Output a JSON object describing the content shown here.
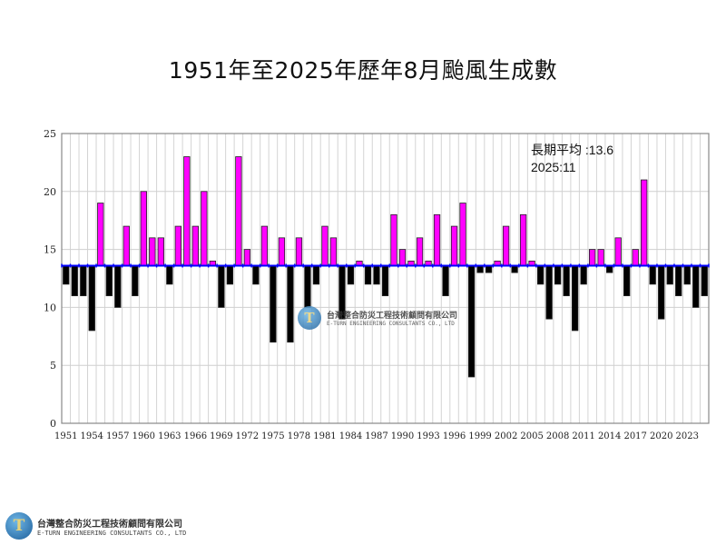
{
  "chart_data": {
    "type": "bar",
    "title": "1951年至2025年歷年8月颱風生成數",
    "xlabel": "",
    "ylabel": "",
    "ylim": [
      0,
      25
    ],
    "yticks": [
      0,
      5,
      10,
      15,
      20,
      25
    ],
    "baseline": 13.6,
    "x_start": 1951,
    "xtick_labels": [
      "1951",
      "1954",
      "1957",
      "1960",
      "1963",
      "1966",
      "1969",
      "1972",
      "1975",
      "1978",
      "1981",
      "1984",
      "1987",
      "1990",
      "1993",
      "1996",
      "1999",
      "2002",
      "2005",
      "2008",
      "2011",
      "2014",
      "2017",
      "2020",
      "2023"
    ],
    "values": [
      12,
      11,
      11,
      8,
      19,
      11,
      10,
      17,
      11,
      20,
      16,
      16,
      12,
      17,
      23,
      17,
      20,
      14,
      10,
      12,
      23,
      15,
      12,
      17,
      7,
      16,
      7,
      16,
      10,
      12,
      17,
      16,
      9,
      12,
      14,
      12,
      12,
      11,
      18,
      15,
      14,
      16,
      14,
      18,
      11,
      17,
      19,
      4,
      13,
      13,
      14,
      17,
      13,
      18,
      14,
      12,
      9,
      12,
      11,
      8,
      12,
      15,
      15,
      13,
      16,
      11,
      15,
      21,
      12,
      9,
      12,
      11,
      12,
      10,
      11
    ],
    "colors": {
      "above": "#ff00ff",
      "below": "#000000",
      "mean_line": "#0000ff"
    },
    "grid": true,
    "annotations": {
      "mean": "長期平均 :13.6",
      "current": "2025:11"
    }
  },
  "logo": {
    "name_zh": "台灣整合防災工程技術顧問有限公司",
    "name_en": "E-TURN ENGINEERING CONSULTANTS CO., LTD"
  }
}
